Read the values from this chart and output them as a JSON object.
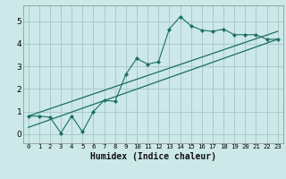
{
  "title": "",
  "xlabel": "Humidex (Indice chaleur)",
  "ylabel": "",
  "bg_color": "#cce8e8",
  "grid_color": "#aacaca",
  "line_color": "#1a6e64",
  "xlim": [
    -0.5,
    23.5
  ],
  "ylim": [
    -0.4,
    5.7
  ],
  "xticks": [
    0,
    1,
    2,
    3,
    4,
    5,
    6,
    7,
    8,
    9,
    10,
    11,
    12,
    13,
    14,
    15,
    16,
    17,
    18,
    19,
    20,
    21,
    22,
    23
  ],
  "yticks": [
    0,
    1,
    2,
    3,
    4,
    5
  ],
  "curve_x": [
    0,
    1,
    2,
    3,
    4,
    5,
    6,
    7,
    8,
    9,
    10,
    11,
    12,
    13,
    14,
    15,
    16,
    17,
    18,
    19,
    20,
    21,
    22,
    23
  ],
  "curve_y": [
    0.8,
    0.8,
    0.75,
    0.05,
    0.8,
    0.1,
    1.0,
    1.5,
    1.45,
    2.65,
    3.35,
    3.1,
    3.2,
    4.65,
    5.2,
    4.8,
    4.6,
    4.55,
    4.65,
    4.4,
    4.4,
    4.4,
    4.2,
    4.2
  ],
  "line1_x": [
    0,
    23
  ],
  "line1_y": [
    0.8,
    4.55
  ],
  "line2_x": [
    0,
    23
  ],
  "line2_y": [
    0.3,
    4.2
  ]
}
